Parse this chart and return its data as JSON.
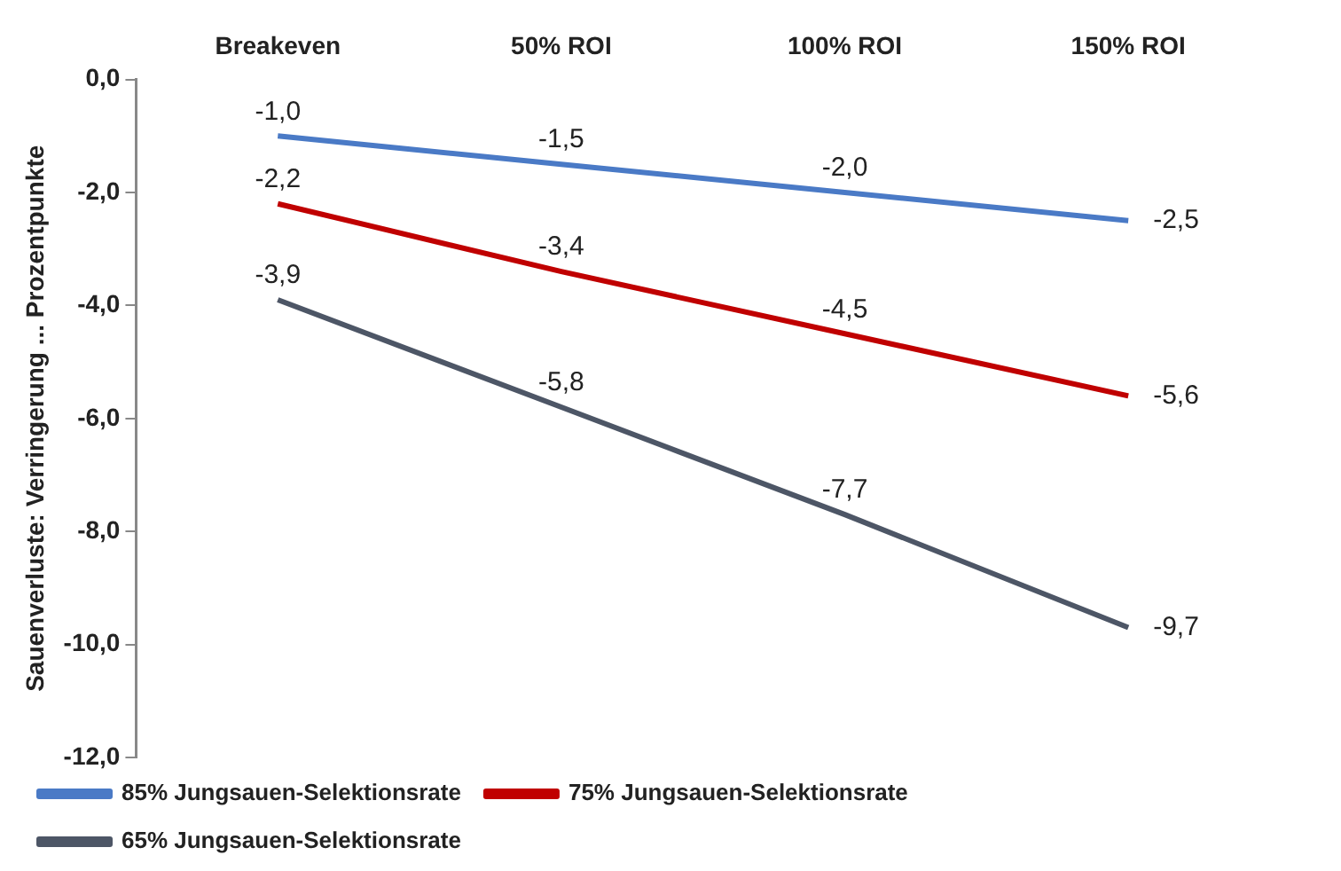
{
  "chart_data": {
    "type": "line",
    "ylabel": "Sauenverluste: Verringerung ... Prozentpunkte",
    "categories": [
      "Breakeven",
      "50% ROI",
      "100% ROI",
      "150% ROI"
    ],
    "series": [
      {
        "name": "85% Jungsauen-Selektionsrate",
        "color": "#4a7ac6",
        "values": [
          -1.0,
          -1.5,
          -2.0,
          -2.5
        ],
        "value_labels": [
          "-1,0",
          "-1,5",
          "-2,0",
          "-2,5"
        ]
      },
      {
        "name": "75% Jungsauen-Selektionsrate",
        "color": "#c00000",
        "values": [
          -2.2,
          -3.4,
          -4.5,
          -5.6
        ],
        "value_labels": [
          "-2,2",
          "-3,4",
          "-4,5",
          "-5,6"
        ]
      },
      {
        "name": "65% Jungsauen-Selektionsrate",
        "color": "#4d5666",
        "values": [
          -3.9,
          -5.8,
          -7.7,
          -9.7
        ],
        "value_labels": [
          "-3,9",
          "-5,8",
          "-7,7",
          "-9,7"
        ]
      }
    ],
    "ylim": [
      -12,
      0
    ],
    "yticks": [
      {
        "value": 0,
        "label": "0,0"
      },
      {
        "value": -2,
        "label": "-2,0"
      },
      {
        "value": -4,
        "label": "-4,0"
      },
      {
        "value": -6,
        "label": "-6,0"
      },
      {
        "value": -8,
        "label": "-8,0"
      },
      {
        "value": -10,
        "label": "-10,0"
      },
      {
        "value": -12,
        "label": "-12,0"
      }
    ],
    "grid": false,
    "legend": "bottom",
    "marker": "none",
    "line_style": "solid"
  }
}
